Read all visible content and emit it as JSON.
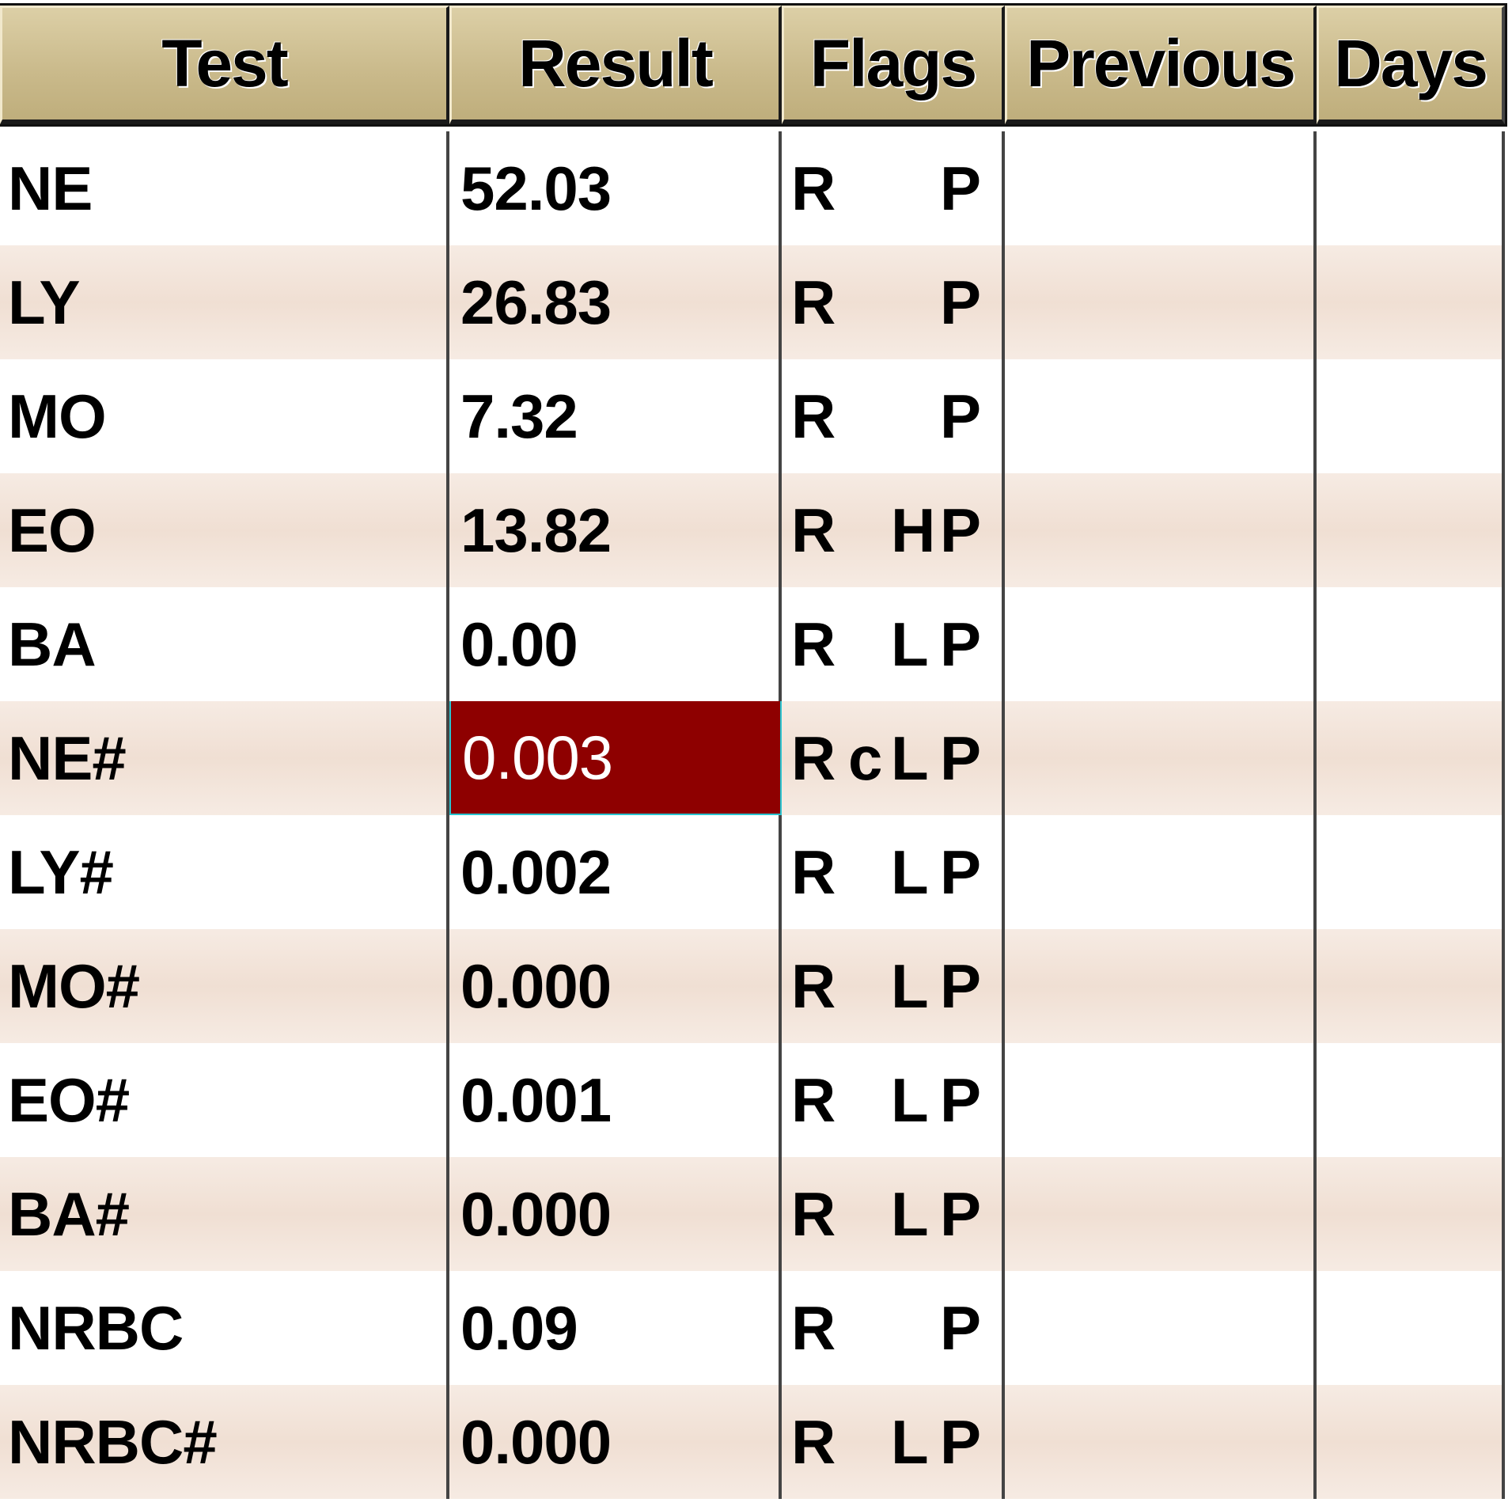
{
  "table": {
    "columns": [
      "Test",
      "Result",
      "Flags",
      "Previous",
      "Days"
    ],
    "rows": [
      {
        "test": "NE",
        "result": "52.03",
        "f1": "R",
        "f2": "",
        "f3": "",
        "f4": "P",
        "previous": "",
        "days": "",
        "highlight": false
      },
      {
        "test": "LY",
        "result": "26.83",
        "f1": "R",
        "f2": "",
        "f3": "",
        "f4": "P",
        "previous": "",
        "days": "",
        "highlight": false
      },
      {
        "test": "MO",
        "result": "7.32",
        "f1": "R",
        "f2": "",
        "f3": "",
        "f4": "P",
        "previous": "",
        "days": "",
        "highlight": false
      },
      {
        "test": "EO",
        "result": "13.82",
        "f1": "R",
        "f2": "",
        "f3": "H",
        "f4": "P",
        "previous": "",
        "days": "",
        "highlight": false
      },
      {
        "test": "BA",
        "result": "0.00",
        "f1": "R",
        "f2": "",
        "f3": "L",
        "f4": "P",
        "previous": "",
        "days": "",
        "highlight": false
      },
      {
        "test": "NE#",
        "result": "0.003",
        "f1": "R",
        "f2": "c",
        "f3": "L",
        "f4": "P",
        "previous": "",
        "days": "",
        "highlight": true
      },
      {
        "test": "LY#",
        "result": "0.002",
        "f1": "R",
        "f2": "",
        "f3": "L",
        "f4": "P",
        "previous": "",
        "days": "",
        "highlight": false
      },
      {
        "test": "MO#",
        "result": "0.000",
        "f1": "R",
        "f2": "",
        "f3": "L",
        "f4": "P",
        "previous": "",
        "days": "",
        "highlight": false
      },
      {
        "test": "EO#",
        "result": "0.001",
        "f1": "R",
        "f2": "",
        "f3": "L",
        "f4": "P",
        "previous": "",
        "days": "",
        "highlight": false
      },
      {
        "test": "BA#",
        "result": "0.000",
        "f1": "R",
        "f2": "",
        "f3": "L",
        "f4": "P",
        "previous": "",
        "days": "",
        "highlight": false
      },
      {
        "test": "NRBC",
        "result": "0.09",
        "f1": "R",
        "f2": "",
        "f3": "",
        "f4": "P",
        "previous": "",
        "days": "",
        "highlight": false
      },
      {
        "test": "NRBC#",
        "result": "0.000",
        "f1": "R",
        "f2": "",
        "f3": "L",
        "f4": "P",
        "previous": "",
        "days": "",
        "highlight": false
      }
    ]
  },
  "colors": {
    "header_bg": "#c9b98a",
    "row_alt_bg": "#f0dfd3",
    "highlight_bg": "#8e0000",
    "highlight_text": "#ffffff"
  }
}
